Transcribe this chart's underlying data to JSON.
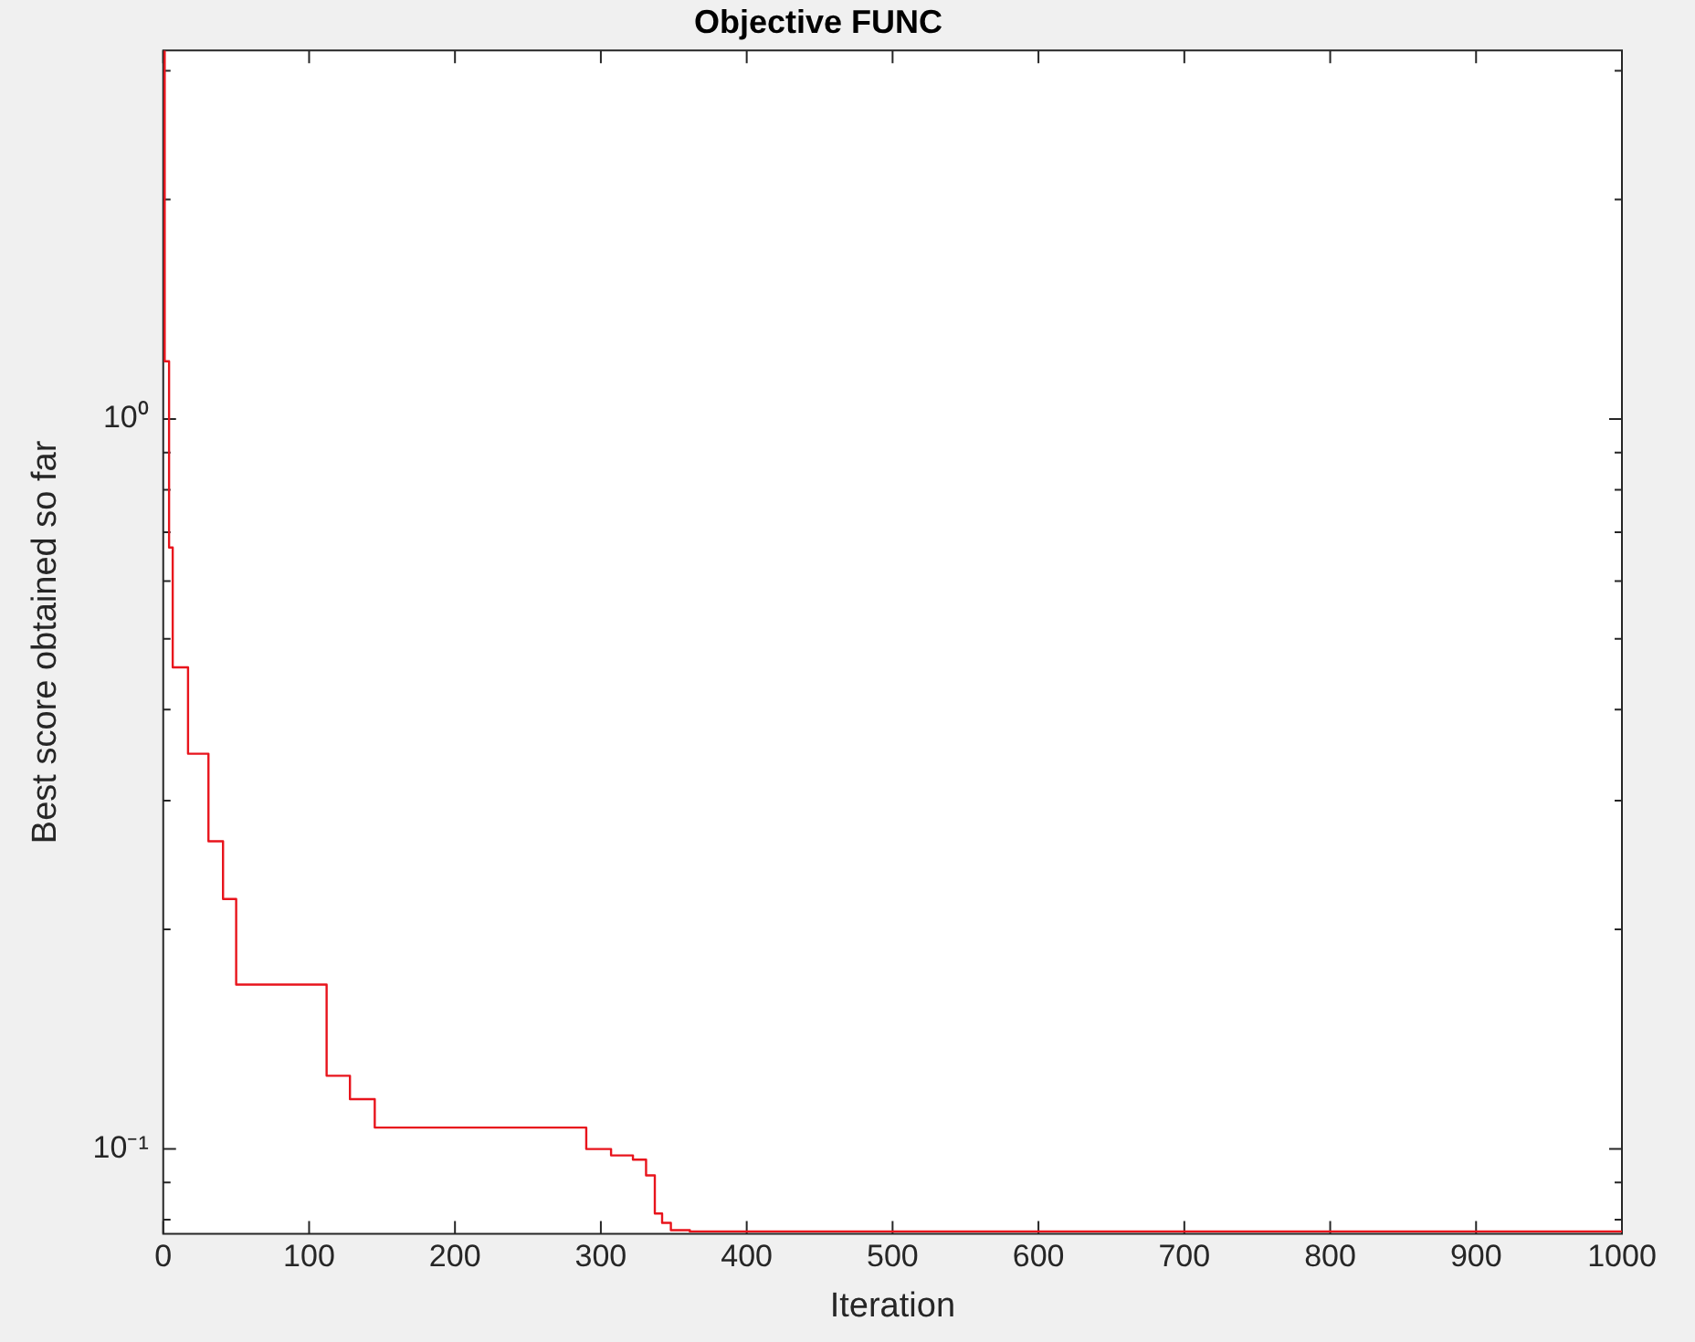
{
  "chart_data": {
    "type": "step",
    "title": "Objective FUNC",
    "xlabel": "Iteration",
    "ylabel": "Best score obtained so far",
    "series": [
      {
        "color": "#e8141c",
        "x": [
          1,
          4,
          6.5,
          17,
          31,
          41,
          50,
          112,
          128,
          145,
          290,
          307,
          322,
          331,
          337,
          342,
          348,
          361,
          402,
          1000
        ],
        "values": [
          3.2,
          1.2,
          0.667,
          0.457,
          0.348,
          0.264,
          0.22,
          0.168,
          0.126,
          0.117,
          0.107,
          0.1,
          0.098,
          0.0967,
          0.092,
          0.0816,
          0.0792,
          0.0774,
          0.0771,
          0.0771
        ]
      }
    ],
    "log": "y",
    "xlim": [
      0,
      1000
    ],
    "xticks": [
      0,
      100,
      200,
      300,
      400,
      500,
      600,
      700,
      800,
      900,
      1000
    ],
    "ylim": [
      0.0765,
      3.2
    ],
    "yticks": [
      {
        "value": 0.08,
        "label": null
      },
      {
        "value": 0.09,
        "label": null
      },
      {
        "value": 0.1,
        "label": "10⁻¹"
      },
      {
        "value": 0.2,
        "label": null
      },
      {
        "value": 0.3,
        "label": null
      },
      {
        "value": 0.4,
        "label": null
      },
      {
        "value": 0.5,
        "label": null
      },
      {
        "value": 0.6,
        "label": null
      },
      {
        "value": 0.7,
        "label": null
      },
      {
        "value": 0.8,
        "label": null
      },
      {
        "value": 0.9,
        "label": null
      },
      {
        "value": 1,
        "label": "10⁰"
      },
      {
        "value": 2,
        "label": null
      },
      {
        "value": 3,
        "label": null
      }
    ],
    "grid": false,
    "legend": false,
    "line_style": "solid",
    "marker": "none"
  }
}
